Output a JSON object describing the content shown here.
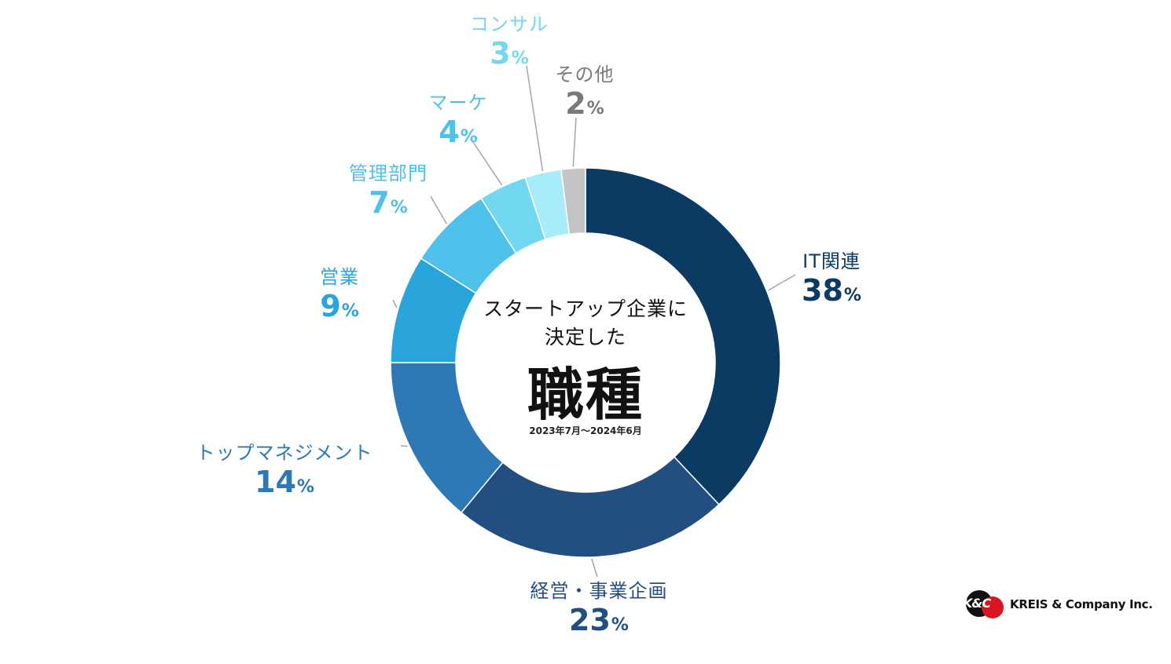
{
  "chart_data": {
    "type": "pie",
    "subtitle": "スタートアップ企業に",
    "subtitle2": "決定した",
    "title": "職種",
    "period": "2023年7月～2024年6月",
    "slices": [
      {
        "label": "IT関連",
        "value": 38,
        "pct": "38",
        "color": "#0b3a63",
        "label_color": "#0b3a63"
      },
      {
        "label": "経営・事業企画",
        "value": 23,
        "pct": "23",
        "color": "#234e80",
        "label_color": "#234e80"
      },
      {
        "label": "トップマネジメント",
        "value": 14,
        "pct": "14",
        "color": "#2e78b6",
        "label_color": "#2e78b6"
      },
      {
        "label": "営業",
        "value": 9,
        "pct": "9",
        "color": "#2aa5db",
        "label_color": "#2aa5db"
      },
      {
        "label": "管理部門",
        "value": 7,
        "pct": "7",
        "color": "#4fc1ea",
        "label_color": "#4fc1ea"
      },
      {
        "label": "マーケ",
        "value": 4,
        "pct": "4",
        "color": "#72d7f1",
        "label_color": "#4fc1ea"
      },
      {
        "label": "コンサル",
        "value": 3,
        "pct": "3",
        "color": "#a8ebfa",
        "label_color": "#72d7f1"
      },
      {
        "label": "その他",
        "value": 2,
        "pct": "2",
        "color": "#c4c4c4",
        "label_color": "#7a7a7a"
      }
    ],
    "pct_symbol": "%",
    "leader_color": "#9aa8b4"
  },
  "logo": {
    "mark": "K&C",
    "company": "KREIS & Company Inc."
  }
}
